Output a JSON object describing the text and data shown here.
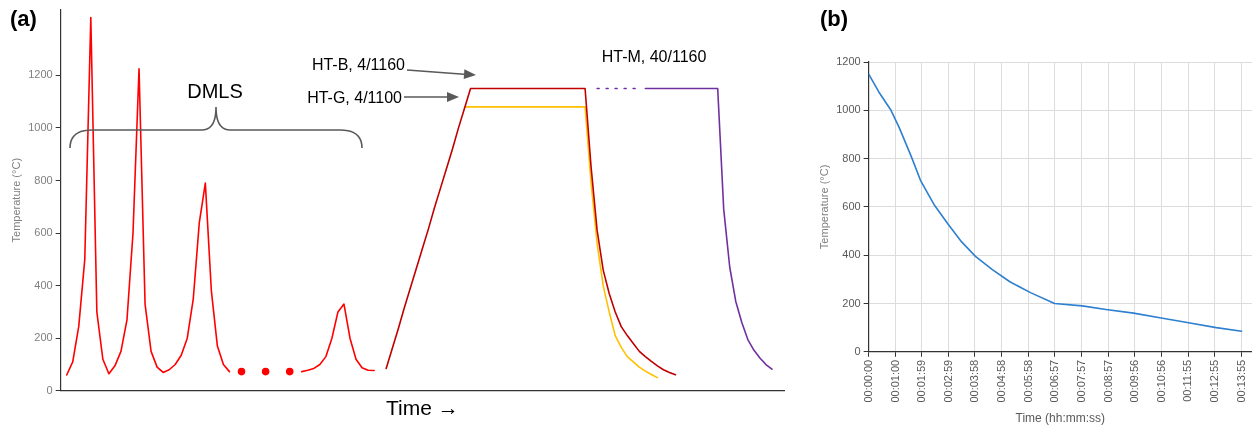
{
  "chart_data": [
    {
      "type": "line",
      "title": "(a)",
      "xlabel": "Time →",
      "ylabel": "Temperature (°C)",
      "ylim": [
        0,
        1450
      ],
      "yticks": [
        0,
        200,
        400,
        600,
        800,
        1000,
        1200
      ],
      "tick_labels": "y",
      "marker": "none",
      "line_style": "solid",
      "categories": [
        null,
        null,
        null,
        null,
        null,
        null,
        null,
        null,
        null,
        null,
        null,
        null,
        null,
        null,
        null,
        null,
        null,
        null,
        null,
        null,
        null,
        null,
        null,
        null,
        null,
        null,
        null,
        null,
        null,
        null,
        null,
        null,
        null,
        null,
        null,
        null,
        null,
        null,
        null,
        null,
        null,
        null,
        null,
        null,
        null,
        null,
        null,
        null,
        null,
        null,
        null,
        null,
        null,
        null,
        null,
        null,
        null,
        null,
        null,
        null,
        null,
        null,
        null,
        null,
        null,
        null,
        null,
        null,
        null,
        null,
        null,
        null,
        null,
        null,
        null,
        null,
        null,
        null,
        null,
        null,
        null,
        null,
        null,
        null,
        null,
        null,
        null,
        null,
        null,
        null,
        null,
        null,
        null,
        null,
        null,
        null,
        null,
        null,
        null,
        null,
        null,
        null,
        null,
        null,
        null,
        null,
        null,
        null,
        null,
        null,
        null,
        null,
        null,
        null,
        null,
        null,
        null,
        null,
        null,
        null,
        null
      ],
      "series": [
        {
          "type": "line",
          "color": "#ff0000",
          "values": [
            null,
            60,
            110,
            245,
            500,
            1420,
            300,
            120,
            65,
            95,
            150,
            270,
            600,
            1225,
            330,
            150,
            90,
            70,
            80,
            100,
            135,
            200,
            350,
            640,
            790,
            380,
            170,
            100,
            73,
            null,
            null,
            null,
            null,
            null,
            null,
            null,
            null,
            null,
            null,
            null,
            73,
            78,
            85,
            100,
            130,
            200,
            300,
            330,
            200,
            120,
            88,
            78,
            77,
            null,
            null,
            null,
            null,
            null,
            null,
            null,
            null,
            null,
            null,
            null,
            null,
            null,
            null,
            null,
            null,
            null,
            null,
            null,
            null,
            null,
            null,
            null,
            null,
            null,
            null,
            null,
            null,
            null,
            null,
            null,
            null,
            null,
            null,
            null,
            null,
            null,
            null,
            null,
            null,
            null,
            null,
            null,
            null,
            null,
            null,
            null,
            null,
            null,
            null,
            null,
            null,
            null,
            null,
            null,
            null,
            null,
            null,
            null,
            null,
            null,
            null,
            null,
            null,
            null,
            null,
            null,
            null
          ]
        },
        {
          "type": "scatter",
          "marker": "circle",
          "color": "#ff0000",
          "values": [
            null,
            null,
            null,
            null,
            null,
            null,
            null,
            null,
            null,
            null,
            null,
            null,
            null,
            null,
            null,
            null,
            null,
            null,
            null,
            null,
            null,
            null,
            null,
            null,
            null,
            null,
            null,
            null,
            null,
            null,
            73,
            null,
            null,
            null,
            73,
            null,
            null,
            null,
            73,
            null,
            null,
            null,
            null,
            null,
            null,
            null,
            null,
            null,
            null,
            null,
            null,
            null,
            null,
            null,
            null,
            null,
            null,
            null,
            null,
            null,
            null,
            null,
            null,
            null,
            null,
            null,
            null,
            null,
            null,
            null,
            null,
            null,
            null,
            null,
            null,
            null,
            null,
            null,
            null,
            null,
            null,
            null,
            null,
            null,
            null,
            null,
            null,
            null,
            null,
            null,
            null,
            null,
            null,
            null,
            null,
            null,
            null,
            null,
            null,
            null,
            null,
            null,
            null,
            null,
            null,
            null,
            null,
            null,
            null,
            null,
            null,
            null,
            null,
            null,
            null,
            null,
            null,
            null,
            null,
            null,
            null
          ]
        },
        {
          "type": "line",
          "color": "#c00000",
          "values": [
            null,
            null,
            null,
            null,
            null,
            null,
            null,
            null,
            null,
            null,
            null,
            null,
            null,
            null,
            null,
            null,
            null,
            null,
            null,
            null,
            null,
            null,
            null,
            null,
            null,
            null,
            null,
            null,
            null,
            null,
            null,
            null,
            null,
            null,
            null,
            null,
            null,
            null,
            null,
            null,
            null,
            null,
            null,
            null,
            null,
            null,
            null,
            null,
            null,
            null,
            null,
            null,
            null,
            null,
            85,
            160,
            235,
            315,
            390,
            465,
            540,
            615,
            695,
            770,
            845,
            920,
            1000,
            1075,
            1150,
            1150,
            1150,
            1150,
            1150,
            1150,
            1150,
            1150,
            1150,
            1150,
            1150,
            1150,
            1150,
            1150,
            1150,
            1150,
            1150,
            1150,
            1150,
            1150,
            850,
            610,
            460,
            370,
            300,
            244,
            210,
            180,
            150,
            130,
            112,
            95,
            80,
            70,
            61,
            null,
            null,
            null,
            null,
            null,
            null,
            null,
            null,
            null,
            null,
            null,
            null,
            null,
            null,
            null,
            null,
            null,
            null
          ]
        },
        {
          "type": "line",
          "color": "#ffc000",
          "values": [
            null,
            null,
            null,
            null,
            null,
            null,
            null,
            null,
            null,
            null,
            null,
            null,
            null,
            null,
            null,
            null,
            null,
            null,
            null,
            null,
            null,
            null,
            null,
            null,
            null,
            null,
            null,
            null,
            null,
            null,
            null,
            null,
            null,
            null,
            null,
            null,
            null,
            null,
            null,
            null,
            null,
            null,
            null,
            null,
            null,
            null,
            null,
            null,
            null,
            null,
            null,
            null,
            null,
            null,
            null,
            null,
            null,
            null,
            null,
            null,
            null,
            null,
            null,
            null,
            null,
            null,
            null,
            1080,
            1080,
            1080,
            1080,
            1080,
            1080,
            1080,
            1080,
            1080,
            1080,
            1080,
            1080,
            1080,
            1080,
            1080,
            1080,
            1080,
            1080,
            1080,
            1080,
            1080,
            790,
            560,
            400,
            300,
            210,
            165,
            130,
            110,
            90,
            75,
            62,
            50,
            null,
            null,
            null,
            null,
            null,
            null,
            null,
            null,
            null,
            null,
            null,
            null,
            null,
            null,
            null,
            null,
            null,
            null,
            null,
            null,
            null
          ]
        },
        {
          "type": "line",
          "line_style": "dotted",
          "color": "#7030a0",
          "values": [
            null,
            null,
            null,
            null,
            null,
            null,
            null,
            null,
            null,
            null,
            null,
            null,
            null,
            null,
            null,
            null,
            null,
            null,
            null,
            null,
            null,
            null,
            null,
            null,
            null,
            null,
            null,
            null,
            null,
            null,
            null,
            null,
            null,
            null,
            null,
            null,
            null,
            null,
            null,
            null,
            null,
            null,
            null,
            null,
            null,
            null,
            null,
            null,
            null,
            null,
            null,
            null,
            null,
            null,
            null,
            null,
            null,
            null,
            null,
            null,
            null,
            null,
            null,
            null,
            null,
            null,
            null,
            null,
            null,
            null,
            null,
            null,
            null,
            null,
            null,
            null,
            null,
            null,
            null,
            null,
            null,
            null,
            null,
            null,
            null,
            null,
            null,
            null,
            null,
            1150,
            1150,
            1150,
            1150,
            1150,
            1150,
            1150,
            1150,
            null,
            null,
            null,
            null,
            null,
            null,
            null,
            null,
            null,
            null,
            null,
            null,
            null,
            null,
            null,
            null,
            null,
            null,
            null,
            null,
            null,
            null,
            null,
            null
          ]
        },
        {
          "type": "line",
          "color": "#7030a0",
          "values": [
            null,
            null,
            null,
            null,
            null,
            null,
            null,
            null,
            null,
            null,
            null,
            null,
            null,
            null,
            null,
            null,
            null,
            null,
            null,
            null,
            null,
            null,
            null,
            null,
            null,
            null,
            null,
            null,
            null,
            null,
            null,
            null,
            null,
            null,
            null,
            null,
            null,
            null,
            null,
            null,
            null,
            null,
            null,
            null,
            null,
            null,
            null,
            null,
            null,
            null,
            null,
            null,
            null,
            null,
            null,
            null,
            null,
            null,
            null,
            null,
            null,
            null,
            null,
            null,
            null,
            null,
            null,
            null,
            null,
            null,
            null,
            null,
            null,
            null,
            null,
            null,
            null,
            null,
            null,
            null,
            null,
            null,
            null,
            null,
            null,
            null,
            null,
            null,
            null,
            null,
            null,
            null,
            null,
            null,
            null,
            null,
            null,
            1150,
            1150,
            1150,
            1150,
            1150,
            1150,
            1150,
            1150,
            1150,
            1150,
            1150,
            1150,
            1150,
            690,
            470,
            340,
            260,
            195,
            155,
            125,
            100,
            82,
            null,
            null
          ]
        }
      ],
      "annotations": [
        "DMLS",
        "HT-B, 4/1160",
        "HT-G, 4/1100",
        "HT-M, 40/1160"
      ]
    },
    {
      "type": "line",
      "title": "(b)",
      "xlabel": "Time (hh:mm:ss)",
      "ylabel": "Temperature (°C)",
      "xlim": [
        0,
        0.2383
      ],
      "ylim": [
        0,
        1200
      ],
      "yticks": [
        0,
        200,
        400,
        600,
        800,
        1000,
        1200
      ],
      "grid": true,
      "marker": "none",
      "xticks": [
        {
          "value": 0,
          "label": "00:00:00"
        },
        {
          "value": 0.016667,
          "label": "00:01:00"
        },
        {
          "value": 0.033056,
          "label": "00:01:59"
        },
        {
          "value": 0.049722,
          "label": "00:02:59"
        },
        {
          "value": 0.066111,
          "label": "00:03:58"
        },
        {
          "value": 0.082778,
          "label": "00:04:58"
        },
        {
          "value": 0.099444,
          "label": "00:05:58"
        },
        {
          "value": 0.115833,
          "label": "00:06:57"
        },
        {
          "value": 0.1325,
          "label": "00:07:57"
        },
        {
          "value": 0.149167,
          "label": "00:08:57"
        },
        {
          "value": 0.165556,
          "label": "00:09:56"
        },
        {
          "value": 0.182222,
          "label": "00:10:56"
        },
        {
          "value": 0.198611,
          "label": "00:11:55"
        },
        {
          "value": 0.215278,
          "label": "00:12:55"
        },
        {
          "value": 0.231944,
          "label": "00:13:55"
        }
      ],
      "series": [
        {
          "color": "#2e7fcf",
          "x": [
            0,
            0.0064,
            0.0139,
            0.0192,
            0.0267,
            0.0322,
            0.0406,
            0.0492,
            0.0578,
            0.0664,
            0.0769,
            0.0878,
            0.1006,
            0.1156,
            0.1328,
            0.1475,
            0.1647,
            0.1819,
            0.1989,
            0.2161,
            0.2319
          ],
          "values": [
            1150,
            1075,
            1000,
            925,
            805,
            710,
            610,
            530,
            455,
            395,
            340,
            290,
            245,
            200,
            190,
            175,
            160,
            140,
            120,
            100,
            85
          ]
        }
      ]
    }
  ]
}
